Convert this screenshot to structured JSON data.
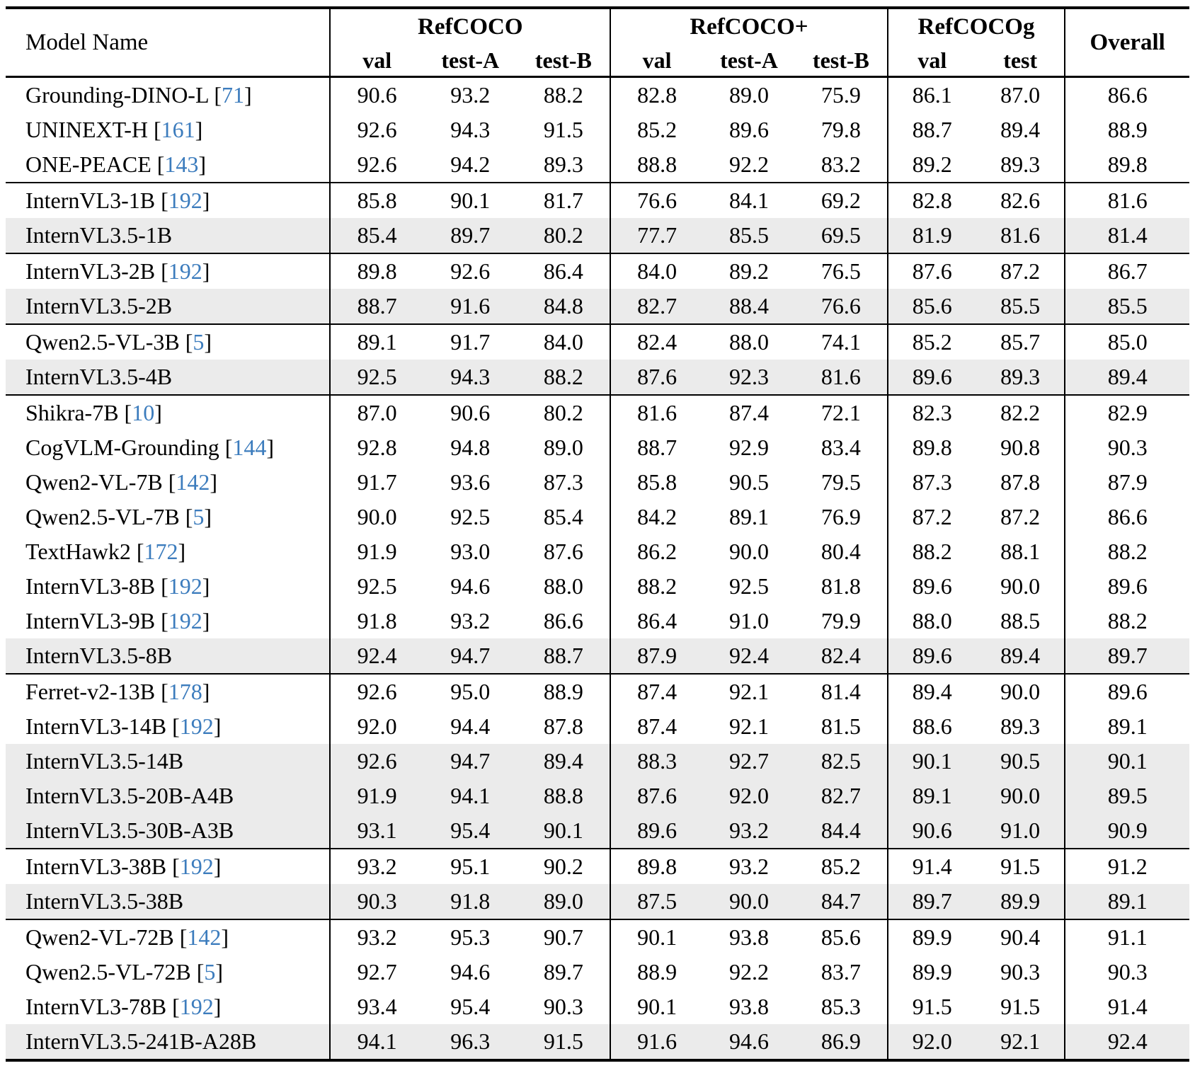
{
  "table": {
    "col_model": "Model Name",
    "overall_label": "Overall",
    "groups": [
      {
        "label": "RefCOCO",
        "cols": [
          "val",
          "test-A",
          "test-B"
        ]
      },
      {
        "label": "RefCOCO+",
        "cols": [
          "val",
          "test-A",
          "test-B"
        ]
      },
      {
        "label": "RefCOCOg",
        "cols": [
          "val",
          "test"
        ]
      }
    ],
    "rows": [
      {
        "model": "Grounding-DINO-L",
        "cite": "71",
        "highlight": false,
        "section_end": false,
        "values": [
          "90.6",
          "93.2",
          "88.2",
          "82.8",
          "89.0",
          "75.9",
          "86.1",
          "87.0",
          "86.6"
        ]
      },
      {
        "model": "UNINEXT-H",
        "cite": "161",
        "highlight": false,
        "section_end": false,
        "values": [
          "92.6",
          "94.3",
          "91.5",
          "85.2",
          "89.6",
          "79.8",
          "88.7",
          "89.4",
          "88.9"
        ]
      },
      {
        "model": "ONE-PEACE",
        "cite": "143",
        "highlight": false,
        "section_end": true,
        "values": [
          "92.6",
          "94.2",
          "89.3",
          "88.8",
          "92.2",
          "83.2",
          "89.2",
          "89.3",
          "89.8"
        ]
      },
      {
        "model": "InternVL3-1B",
        "cite": "192",
        "highlight": false,
        "section_end": false,
        "values": [
          "85.8",
          "90.1",
          "81.7",
          "76.6",
          "84.1",
          "69.2",
          "82.8",
          "82.6",
          "81.6"
        ]
      },
      {
        "model": "InternVL3.5-1B",
        "cite": "",
        "highlight": true,
        "section_end": true,
        "values": [
          "85.4",
          "89.7",
          "80.2",
          "77.7",
          "85.5",
          "69.5",
          "81.9",
          "81.6",
          "81.4"
        ]
      },
      {
        "model": "InternVL3-2B",
        "cite": "192",
        "highlight": false,
        "section_end": false,
        "values": [
          "89.8",
          "92.6",
          "86.4",
          "84.0",
          "89.2",
          "76.5",
          "87.6",
          "87.2",
          "86.7"
        ]
      },
      {
        "model": "InternVL3.5-2B",
        "cite": "",
        "highlight": true,
        "section_end": true,
        "values": [
          "88.7",
          "91.6",
          "84.8",
          "82.7",
          "88.4",
          "76.6",
          "85.6",
          "85.5",
          "85.5"
        ]
      },
      {
        "model": "Qwen2.5-VL-3B",
        "cite": "5",
        "highlight": false,
        "section_end": false,
        "values": [
          "89.1",
          "91.7",
          "84.0",
          "82.4",
          "88.0",
          "74.1",
          "85.2",
          "85.7",
          "85.0"
        ]
      },
      {
        "model": "InternVL3.5-4B",
        "cite": "",
        "highlight": true,
        "section_end": true,
        "values": [
          "92.5",
          "94.3",
          "88.2",
          "87.6",
          "92.3",
          "81.6",
          "89.6",
          "89.3",
          "89.4"
        ]
      },
      {
        "model": "Shikra-7B",
        "cite": "10",
        "highlight": false,
        "section_end": false,
        "values": [
          "87.0",
          "90.6",
          "80.2",
          "81.6",
          "87.4",
          "72.1",
          "82.3",
          "82.2",
          "82.9"
        ]
      },
      {
        "model": "CogVLM-Grounding",
        "cite": "144",
        "highlight": false,
        "section_end": false,
        "values": [
          "92.8",
          "94.8",
          "89.0",
          "88.7",
          "92.9",
          "83.4",
          "89.8",
          "90.8",
          "90.3"
        ]
      },
      {
        "model": "Qwen2-VL-7B",
        "cite": "142",
        "highlight": false,
        "section_end": false,
        "values": [
          "91.7",
          "93.6",
          "87.3",
          "85.8",
          "90.5",
          "79.5",
          "87.3",
          "87.8",
          "87.9"
        ]
      },
      {
        "model": "Qwen2.5-VL-7B",
        "cite": "5",
        "highlight": false,
        "section_end": false,
        "values": [
          "90.0",
          "92.5",
          "85.4",
          "84.2",
          "89.1",
          "76.9",
          "87.2",
          "87.2",
          "86.6"
        ]
      },
      {
        "model": "TextHawk2",
        "cite": "172",
        "highlight": false,
        "section_end": false,
        "values": [
          "91.9",
          "93.0",
          "87.6",
          "86.2",
          "90.0",
          "80.4",
          "88.2",
          "88.1",
          "88.2"
        ]
      },
      {
        "model": "InternVL3-8B",
        "cite": "192",
        "highlight": false,
        "section_end": false,
        "values": [
          "92.5",
          "94.6",
          "88.0",
          "88.2",
          "92.5",
          "81.8",
          "89.6",
          "90.0",
          "89.6"
        ]
      },
      {
        "model": "InternVL3-9B",
        "cite": "192",
        "highlight": false,
        "section_end": false,
        "values": [
          "91.8",
          "93.2",
          "86.6",
          "86.4",
          "91.0",
          "79.9",
          "88.0",
          "88.5",
          "88.2"
        ]
      },
      {
        "model": "InternVL3.5-8B",
        "cite": "",
        "highlight": true,
        "section_end": true,
        "values": [
          "92.4",
          "94.7",
          "88.7",
          "87.9",
          "92.4",
          "82.4",
          "89.6",
          "89.4",
          "89.7"
        ]
      },
      {
        "model": "Ferret-v2-13B",
        "cite": "178",
        "highlight": false,
        "section_end": false,
        "values": [
          "92.6",
          "95.0",
          "88.9",
          "87.4",
          "92.1",
          "81.4",
          "89.4",
          "90.0",
          "89.6"
        ]
      },
      {
        "model": "InternVL3-14B",
        "cite": "192",
        "highlight": false,
        "section_end": false,
        "values": [
          "92.0",
          "94.4",
          "87.8",
          "87.4",
          "92.1",
          "81.5",
          "88.6",
          "89.3",
          "89.1"
        ]
      },
      {
        "model": "InternVL3.5-14B",
        "cite": "",
        "highlight": true,
        "section_end": false,
        "values": [
          "92.6",
          "94.7",
          "89.4",
          "88.3",
          "92.7",
          "82.5",
          "90.1",
          "90.5",
          "90.1"
        ]
      },
      {
        "model": "InternVL3.5-20B-A4B",
        "cite": "",
        "highlight": true,
        "section_end": false,
        "values": [
          "91.9",
          "94.1",
          "88.8",
          "87.6",
          "92.0",
          "82.7",
          "89.1",
          "90.0",
          "89.5"
        ]
      },
      {
        "model": "InternVL3.5-30B-A3B",
        "cite": "",
        "highlight": true,
        "section_end": true,
        "values": [
          "93.1",
          "95.4",
          "90.1",
          "89.6",
          "93.2",
          "84.4",
          "90.6",
          "91.0",
          "90.9"
        ]
      },
      {
        "model": "InternVL3-38B",
        "cite": "192",
        "highlight": false,
        "section_end": false,
        "values": [
          "93.2",
          "95.1",
          "90.2",
          "89.8",
          "93.2",
          "85.2",
          "91.4",
          "91.5",
          "91.2"
        ]
      },
      {
        "model": "InternVL3.5-38B",
        "cite": "",
        "highlight": true,
        "section_end": true,
        "values": [
          "90.3",
          "91.8",
          "89.0",
          "87.5",
          "90.0",
          "84.7",
          "89.7",
          "89.9",
          "89.1"
        ]
      },
      {
        "model": "Qwen2-VL-72B",
        "cite": "142",
        "highlight": false,
        "section_end": false,
        "values": [
          "93.2",
          "95.3",
          "90.7",
          "90.1",
          "93.8",
          "85.6",
          "89.9",
          "90.4",
          "91.1"
        ]
      },
      {
        "model": "Qwen2.5-VL-72B",
        "cite": "5",
        "highlight": false,
        "section_end": false,
        "values": [
          "92.7",
          "94.6",
          "89.7",
          "88.9",
          "92.2",
          "83.7",
          "89.9",
          "90.3",
          "90.3"
        ]
      },
      {
        "model": "InternVL3-78B",
        "cite": "192",
        "highlight": false,
        "section_end": false,
        "values": [
          "93.4",
          "95.4",
          "90.3",
          "90.1",
          "93.8",
          "85.3",
          "91.5",
          "91.5",
          "91.4"
        ]
      },
      {
        "model": "InternVL3.5-241B-A28B",
        "cite": "",
        "highlight": true,
        "section_end": false,
        "values": [
          "94.1",
          "96.3",
          "91.5",
          "91.6",
          "94.6",
          "86.9",
          "92.0",
          "92.1",
          "92.4"
        ]
      }
    ]
  },
  "colors": {
    "citation_blue": "#3c7cbd",
    "highlight_row": "#ebebeb"
  }
}
